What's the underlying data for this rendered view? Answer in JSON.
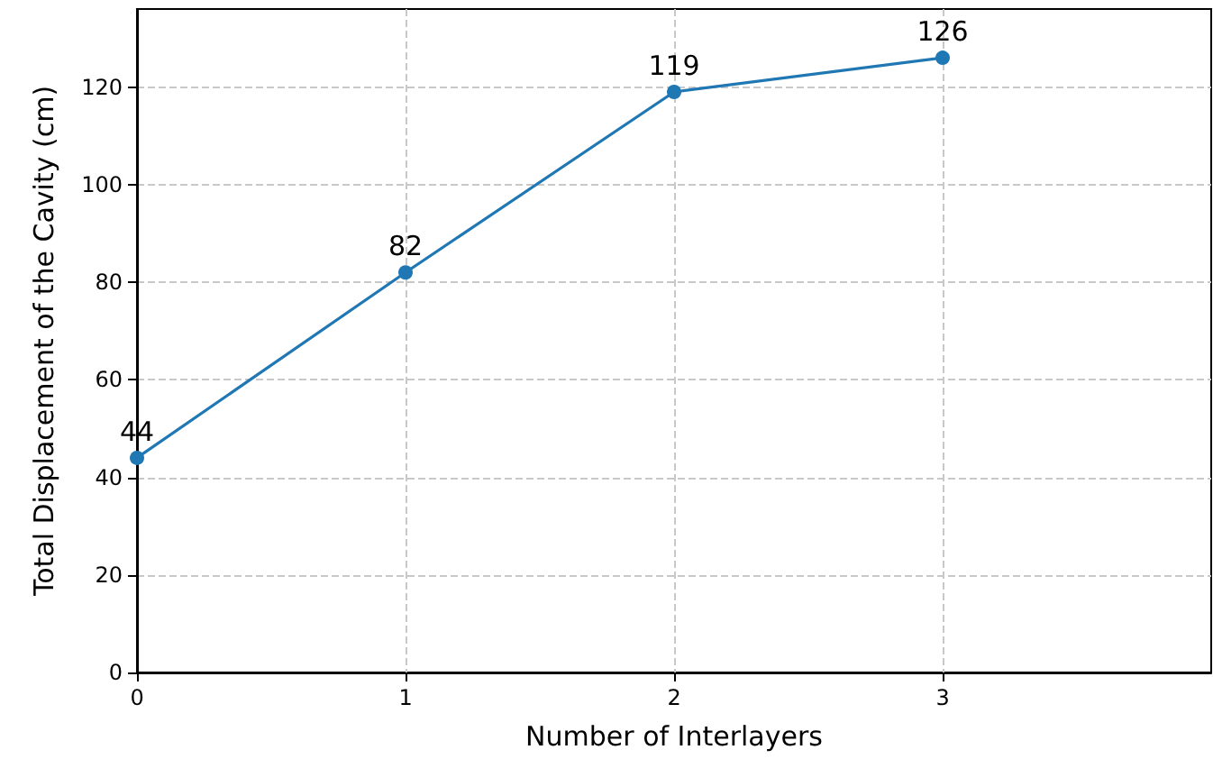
{
  "chart_data": {
    "type": "line",
    "xlabel": "Number of Interlayers",
    "ylabel": "Total Displacement of the Cavity (cm)",
    "x": [
      0,
      1,
      2,
      3
    ],
    "series": [
      {
        "color": "#1f77b4",
        "values": [
          44,
          82,
          119,
          126
        ]
      }
    ],
    "xlim": [
      0,
      4
    ],
    "xticks": [
      0,
      1,
      2,
      3
    ],
    "ylim": [
      0,
      136
    ],
    "yticks": [
      0,
      20,
      40,
      60,
      80,
      100,
      120
    ],
    "grid": true,
    "marker": "circle",
    "line_style": "solid",
    "data_labels": true
  }
}
